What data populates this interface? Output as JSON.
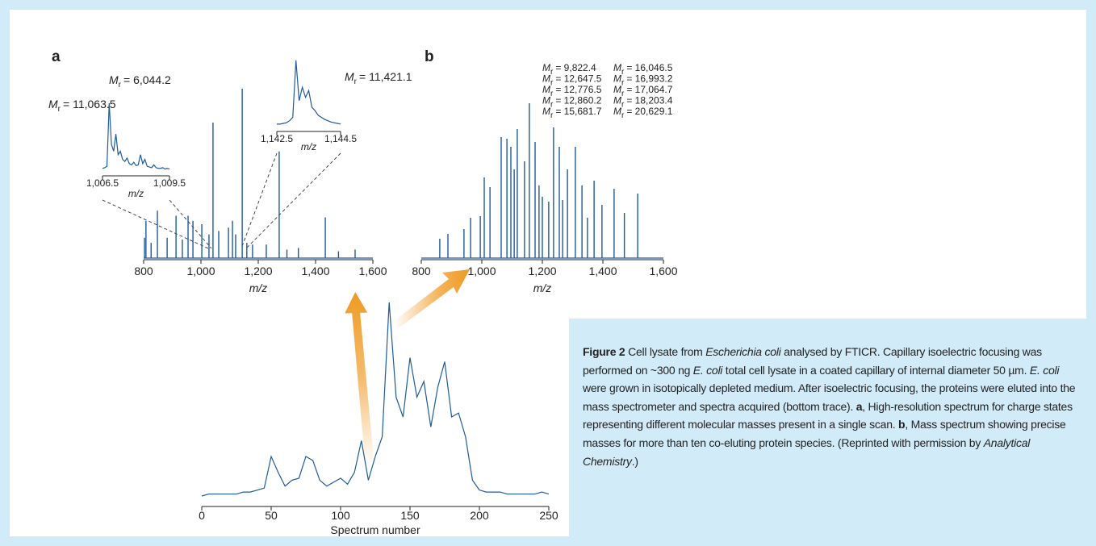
{
  "chart_data": [
    {
      "type": "stick",
      "panel_label": "a",
      "x_label": "m/z",
      "color": "#1f5b9a",
      "xlim": [
        800,
        1600
      ],
      "ylim": [
        0,
        100
      ],
      "xticks": [
        800,
        {
          "value": 1000,
          "label": "1,000"
        },
        {
          "value": 1200,
          "label": "1,200"
        },
        {
          "value": 1400,
          "label": "1,400"
        },
        {
          "value": 1600,
          "label": "1,600"
        }
      ],
      "x": [
        803,
        808,
        826,
        848,
        882,
        913,
        935,
        955,
        972,
        1003,
        1028,
        1042,
        1062,
        1096,
        1110,
        1121,
        1144,
        1160,
        1180,
        1228,
        1273,
        1300,
        1340,
        1434,
        1480,
        1538
      ],
      "values": [
        12,
        22,
        9,
        28,
        12,
        25,
        11,
        25,
        22,
        20,
        14,
        80,
        16,
        18,
        22,
        14,
        100,
        9,
        8,
        8,
        63,
        5,
        6,
        24,
        4,
        5
      ],
      "annotations": [
        {
          "symbol": "M",
          "sub": "r",
          "text": "= 6,044.2"
        }
      ]
    },
    {
      "type": "line",
      "x_label": "m/z",
      "color": "#1f5b9a",
      "xlim": [
        1006.5,
        1009.5
      ],
      "ylim": [
        0,
        100
      ],
      "xticks": [
        {
          "value": 1006.5,
          "label": "1,006.5"
        },
        {
          "value": 1009.5,
          "label": "1,009.5"
        }
      ],
      "x": [
        1006.5,
        1006.6,
        1006.7,
        1006.8,
        1006.9,
        1007.0,
        1007.1,
        1007.2,
        1007.3,
        1007.4,
        1007.5,
        1007.6,
        1007.7,
        1007.8,
        1007.9,
        1008.0,
        1008.1,
        1008.2,
        1008.3,
        1008.4,
        1008.5,
        1008.6,
        1008.7,
        1008.8,
        1008.9,
        1009.0,
        1009.1,
        1009.2,
        1009.3,
        1009.4,
        1009.5
      ],
      "values": [
        5,
        6,
        8,
        100,
        40,
        30,
        55,
        25,
        30,
        18,
        15,
        20,
        12,
        10,
        14,
        9,
        10,
        25,
        12,
        18,
        8,
        7,
        6,
        10,
        6,
        5,
        5,
        6,
        4,
        5,
        4
      ],
      "annotations": [
        {
          "symbol": "M",
          "sub": "r",
          "text": "= 11,063.5"
        }
      ]
    },
    {
      "type": "line",
      "x_label": "m/z",
      "color": "#1f5b9a",
      "xlim": [
        1142.5,
        1144.5
      ],
      "ylim": [
        0,
        100
      ],
      "xticks": [
        {
          "value": 1142.5,
          "label": "1,142.5"
        },
        {
          "value": 1144.5,
          "label": "1,144.5"
        }
      ],
      "x": [
        1142.5,
        1142.6,
        1142.7,
        1142.8,
        1142.9,
        1143.0,
        1143.1,
        1143.2,
        1143.3,
        1143.4,
        1143.5,
        1143.6,
        1143.7,
        1143.8,
        1143.9,
        1144.0,
        1144.1,
        1144.2,
        1144.3,
        1144.4,
        1144.5
      ],
      "values": [
        5,
        5,
        6,
        7,
        10,
        15,
        100,
        40,
        60,
        45,
        55,
        30,
        25,
        18,
        15,
        12,
        10,
        8,
        7,
        6,
        5
      ],
      "annotations": [
        {
          "symbol": "M",
          "sub": "r",
          "text": "= 11,421.1"
        }
      ]
    },
    {
      "type": "stick",
      "panel_label": "b",
      "x_label": "m/z",
      "color": "#1f5b9a",
      "xlim": [
        800,
        1600
      ],
      "ylim": [
        0,
        100
      ],
      "xticks": [
        800,
        {
          "value": 1000,
          "label": "1,000"
        },
        {
          "value": 1200,
          "label": "1,200"
        },
        {
          "value": 1400,
          "label": "1,400"
        },
        {
          "value": 1600,
          "label": "1,600"
        }
      ],
      "x": [
        861,
        888,
        941,
        963,
        995,
        1008,
        1027,
        1064,
        1083,
        1096,
        1107,
        1117,
        1141,
        1157,
        1176,
        1189,
        1200,
        1221,
        1237,
        1256,
        1267,
        1283,
        1309,
        1331,
        1349,
        1371,
        1397,
        1437,
        1471,
        1515
      ],
      "values": [
        12,
        15,
        18,
        25,
        26,
        50,
        44,
        75,
        74,
        69,
        55,
        80,
        60,
        96,
        72,
        45,
        38,
        35,
        81,
        69,
        36,
        55,
        69,
        45,
        25,
        48,
        33,
        43,
        28,
        40
      ],
      "annotations": [
        {
          "symbol": "M",
          "sub": "r",
          "text": "= 9,822.4"
        },
        {
          "symbol": "M",
          "sub": "r",
          "text": "= 12,647.5"
        },
        {
          "symbol": "M",
          "sub": "r",
          "text": "= 12,776.5"
        },
        {
          "symbol": "M",
          "sub": "r",
          "text": "= 12,860.2"
        },
        {
          "symbol": "M",
          "sub": "r",
          "text": "= 15,681.7"
        },
        {
          "symbol": "M",
          "sub": "r",
          "text": "= 16,046.5"
        },
        {
          "symbol": "M",
          "sub": "r",
          "text": "= 16,993.2"
        },
        {
          "symbol": "M",
          "sub": "r",
          "text": "= 17,064.7"
        },
        {
          "symbol": "M",
          "sub": "r",
          "text": "= 18,203.4"
        },
        {
          "symbol": "M",
          "sub": "r",
          "text": "= 20,629.1"
        }
      ]
    },
    {
      "type": "line",
      "x_label": "Spectrum number",
      "color": "#1f5b9a",
      "xlim": [
        0,
        250
      ],
      "ylim": [
        0,
        100
      ],
      "xticks": [
        0,
        50,
        100,
        150,
        200,
        250
      ],
      "x": [
        0,
        5,
        10,
        15,
        20,
        25,
        30,
        35,
        40,
        45,
        50,
        55,
        60,
        65,
        70,
        75,
        80,
        85,
        90,
        95,
        100,
        105,
        110,
        115,
        120,
        125,
        130,
        135,
        140,
        145,
        150,
        155,
        160,
        165,
        170,
        175,
        180,
        185,
        190,
        195,
        200,
        205,
        210,
        215,
        220,
        225,
        230,
        235,
        240,
        245,
        250
      ],
      "values": [
        0,
        1,
        1,
        1,
        1,
        1,
        2,
        2,
        3,
        4,
        20,
        12,
        5,
        8,
        9,
        20,
        18,
        8,
        5,
        7,
        9,
        6,
        12,
        28,
        8,
        20,
        30,
        98,
        50,
        40,
        70,
        50,
        58,
        35,
        55,
        68,
        40,
        42,
        30,
        8,
        3,
        2,
        2,
        2,
        1,
        1,
        1,
        1,
        1,
        2,
        1
      ]
    }
  ],
  "caption": {
    "runs": [
      {
        "text": "Figure 2",
        "style": "bold"
      },
      {
        "text": " Cell lysate from ",
        "style": "normal"
      },
      {
        "text": "Escherichia coli",
        "style": "italic"
      },
      {
        "text": " analysed by FTICR. Capillary isoelectric focusing was performed on ~300 ng ",
        "style": "normal"
      },
      {
        "text": "E. coli",
        "style": "italic"
      },
      {
        "text": " total cell lysate in a coated capillary of internal diameter 50 µm. ",
        "style": "normal"
      },
      {
        "text": "E. coli",
        "style": "italic"
      },
      {
        "text": " were grown in isotopically depleted medium. After isoelectric focusing, the proteins were eluted into the mass spectrometer and spectra acquired (bottom trace). ",
        "style": "normal"
      },
      {
        "text": "a",
        "style": "bold"
      },
      {
        "text": ", High-resolution spectrum for charge states representing different molecular masses present in a single scan. ",
        "style": "normal"
      },
      {
        "text": "b",
        "style": "bold"
      },
      {
        "text": ", Mass spectrum showing precise masses for more than ten co-eluting protein species. (Reprinted with permission by ",
        "style": "normal"
      },
      {
        "text": "Analytical Chemistry",
        "style": "italic"
      },
      {
        "text": ".)",
        "style": "normal"
      }
    ]
  }
}
